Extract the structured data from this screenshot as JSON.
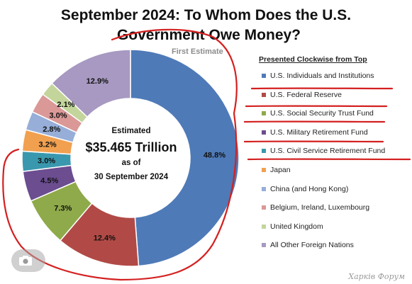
{
  "title_line1": "September 2024: To Whom Does the U.S.",
  "title_line2": "Government Owe Money?",
  "subtitle": "First Estimate",
  "legend_title": "Presented Clockwise from Top",
  "center": {
    "line1": "Estimated",
    "line2": "$35.465 Trillion",
    "line3": "as of",
    "line4": "30 September 2024"
  },
  "watermark": "Харків Форум",
  "colors": {
    "annotation": "#d42020"
  },
  "chart_data": {
    "type": "pie",
    "series": [
      {
        "name": "U.S. Individuals and Institutions",
        "value": 48.8,
        "label": "48.8%",
        "color": "#4f7ab8"
      },
      {
        "name": "U.S. Federal Reserve",
        "value": 12.4,
        "label": "12.4%",
        "color": "#b14a46"
      },
      {
        "name": "U.S. Social Security Trust Fund",
        "value": 7.3,
        "label": "7.3%",
        "color": "#8eaa4a"
      },
      {
        "name": "U.S. Military Retirement Fund",
        "value": 4.5,
        "label": "4.5%",
        "color": "#6b4d90"
      },
      {
        "name": "U.S. Civil Service Retirement Fund",
        "value": 3.0,
        "label": "3.0%",
        "color": "#3a98ae"
      },
      {
        "name": "Japan",
        "value": 3.2,
        "label": "3.2%",
        "color": "#f1a050"
      },
      {
        "name": "China (and Hong Kong)",
        "value": 2.8,
        "label": "2.8%",
        "color": "#96aed8"
      },
      {
        "name": "Belgium, Ireland, Luxembourg",
        "value": 3.0,
        "label": "3.0%",
        "color": "#da9897"
      },
      {
        "name": "United Kingdom",
        "value": 2.1,
        "label": "2.1%",
        "color": "#c3d59b"
      },
      {
        "name": "All Other Foreign Nations",
        "value": 12.9,
        "label": "12.9%",
        "color": "#a799c1"
      }
    ]
  }
}
